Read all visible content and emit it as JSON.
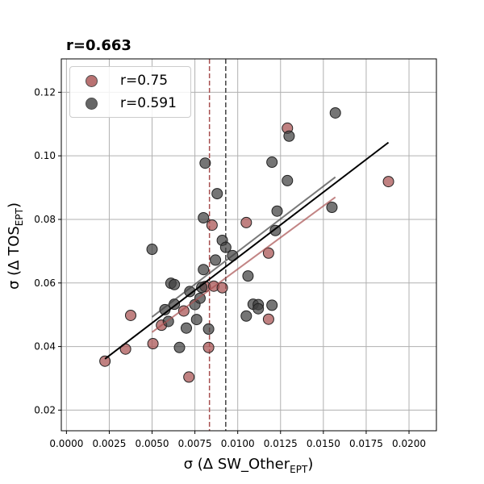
{
  "chart_data": {
    "type": "scatter",
    "title": "r=0.663",
    "xlabel_main": "σ (Δ SW_Other",
    "xlabel_sub": "EPT",
    "xlabel_end": ")",
    "ylabel_main": "σ (Δ TOS",
    "ylabel_sub": "EPT",
    "ylabel_end": ")",
    "xlim": [
      -0.0003,
      0.0216
    ],
    "ylim": [
      0.0135,
      0.1305
    ],
    "x_ticks": [
      0.0,
      0.0025,
      0.005,
      0.0075,
      0.01,
      0.0125,
      0.015,
      0.0175,
      0.02
    ],
    "x_tick_labels": [
      "0.0000",
      "0.0025",
      "0.0050",
      "0.0075",
      "0.0100",
      "0.0125",
      "0.0150",
      "0.0175",
      "0.0200"
    ],
    "y_ticks": [
      0.02,
      0.04,
      0.06,
      0.08,
      0.1,
      0.12
    ],
    "y_tick_labels": [
      "0.02",
      "0.04",
      "0.06",
      "0.08",
      "0.10",
      "0.12"
    ],
    "grid": true,
    "legend_position": "top-left",
    "overall_fit": {
      "x": [
        0.00225,
        0.0188
      ],
      "y": [
        0.0361,
        0.1042
      ],
      "color": "#000000"
    },
    "series": [
      {
        "name": "r=0.75",
        "color": "#a85050",
        "mean_x": 0.00835,
        "fit": {
          "x": [
            0.005,
            0.0157
          ],
          "y": [
            0.0445,
            0.087
          ]
        },
        "points": [
          [
            0.00225,
            0.0354
          ],
          [
            0.00345,
            0.0392
          ],
          [
            0.00375,
            0.0498
          ],
          [
            0.00505,
            0.0409
          ],
          [
            0.00555,
            0.0467
          ],
          [
            0.00685,
            0.0512
          ],
          [
            0.00715,
            0.0304
          ],
          [
            0.0083,
            0.0397
          ],
          [
            0.0081,
            0.0589
          ],
          [
            0.0086,
            0.059
          ],
          [
            0.0091,
            0.0585
          ],
          [
            0.0085,
            0.0782
          ],
          [
            0.0105,
            0.079
          ],
          [
            0.0118,
            0.0694
          ],
          [
            0.0118,
            0.0486
          ],
          [
            0.0129,
            0.1087
          ],
          [
            0.0188,
            0.0919
          ]
        ]
      },
      {
        "name": "r=0.591",
        "color": "#404040",
        "mean_x": 0.0093,
        "fit": {
          "x": [
            0.005,
            0.0157
          ],
          "y": [
            0.0493,
            0.0933
          ]
        },
        "points": [
          [
            0.005,
            0.0706
          ],
          [
            0.00575,
            0.0516
          ],
          [
            0.00595,
            0.0479
          ],
          [
            0.0061,
            0.0599
          ],
          [
            0.0063,
            0.0595
          ],
          [
            0.0063,
            0.0533
          ],
          [
            0.0066,
            0.0397
          ],
          [
            0.007,
            0.0458
          ],
          [
            0.0072,
            0.0573
          ],
          [
            0.0075,
            0.0532
          ],
          [
            0.0076,
            0.0485
          ],
          [
            0.0078,
            0.0552
          ],
          [
            0.0079,
            0.0586
          ],
          [
            0.008,
            0.0642
          ],
          [
            0.008,
            0.0805
          ],
          [
            0.0081,
            0.0977
          ],
          [
            0.0083,
            0.0455
          ],
          [
            0.0087,
            0.0672
          ],
          [
            0.0088,
            0.0881
          ],
          [
            0.0091,
            0.0734
          ],
          [
            0.0093,
            0.0712
          ],
          [
            0.0097,
            0.0686
          ],
          [
            0.0105,
            0.0496
          ],
          [
            0.0106,
            0.0622
          ],
          [
            0.0109,
            0.0533
          ],
          [
            0.0112,
            0.0532
          ],
          [
            0.0112,
            0.0519
          ],
          [
            0.012,
            0.053
          ],
          [
            0.012,
            0.098
          ],
          [
            0.0122,
            0.0765
          ],
          [
            0.0123,
            0.0826
          ],
          [
            0.0129,
            0.0922
          ],
          [
            0.013,
            0.1062
          ],
          [
            0.0155,
            0.0838
          ],
          [
            0.0157,
            0.1135
          ]
        ]
      }
    ]
  }
}
